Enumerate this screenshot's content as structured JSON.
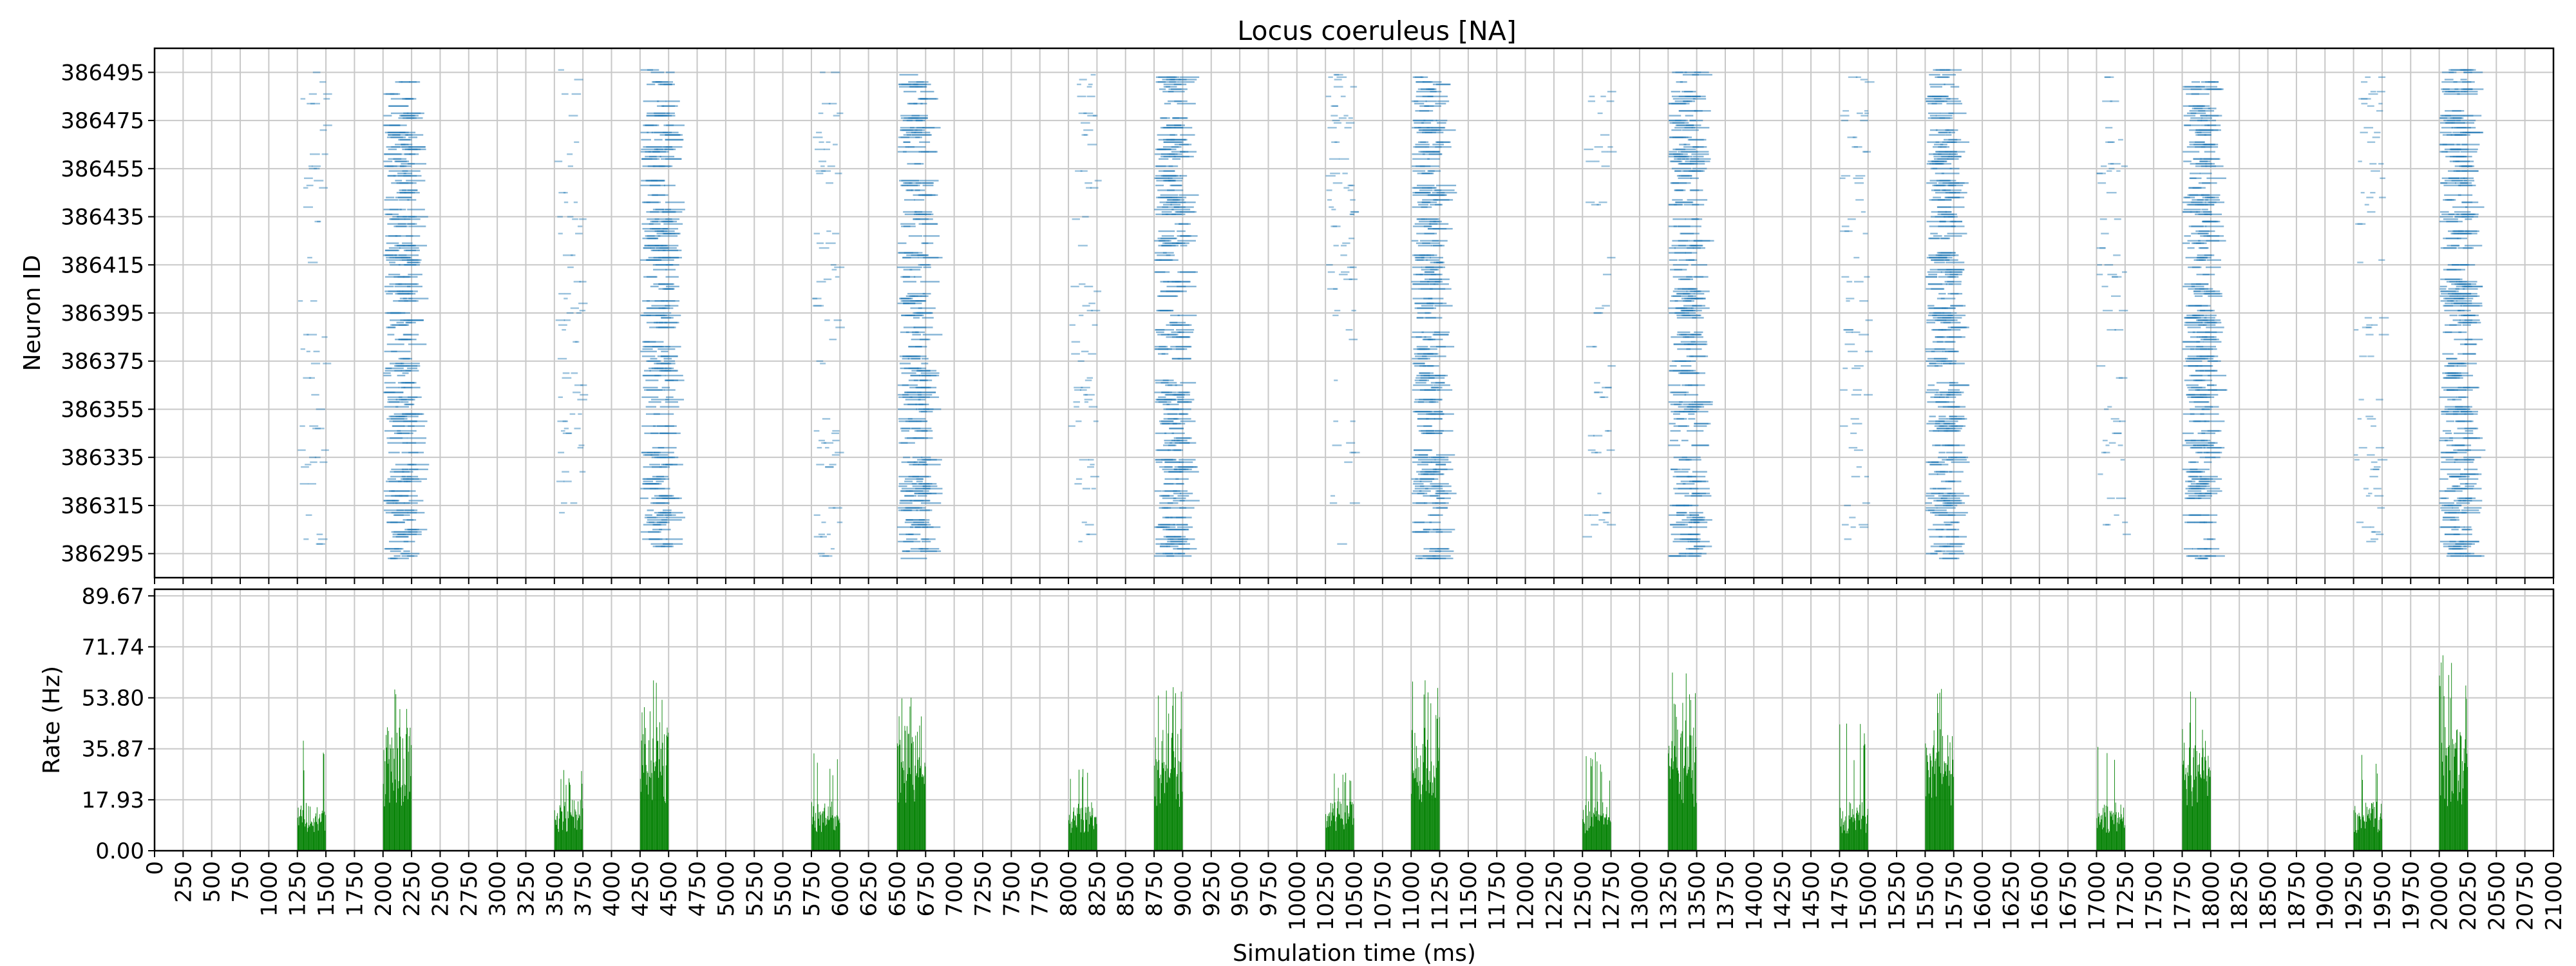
{
  "chart_data": [
    {
      "type": "scatter",
      "title": "Locus coeruleus [NA]",
      "xlabel": "",
      "ylabel": "Neuron ID",
      "xlim": [
        0,
        21000
      ],
      "ylim": [
        386285,
        386505
      ],
      "y_ticks": [
        "386295",
        "386315",
        "386335",
        "386355",
        "386375",
        "386395",
        "386415",
        "386435",
        "386455",
        "386475",
        "386495"
      ],
      "grid": true,
      "color": "#1f77b4",
      "marker": "tiny dots (raster)",
      "neuron_id_range": [
        386293,
        386496
      ],
      "bursts": [
        {
          "start": 1250,
          "end": 1500,
          "density": "sparse"
        },
        {
          "start": 2000,
          "end": 2250,
          "density": "dense"
        },
        {
          "start": 3500,
          "end": 3750,
          "density": "sparse"
        },
        {
          "start": 4250,
          "end": 4500,
          "density": "dense"
        },
        {
          "start": 5750,
          "end": 6000,
          "density": "sparse"
        },
        {
          "start": 6500,
          "end": 6750,
          "density": "dense"
        },
        {
          "start": 8000,
          "end": 8250,
          "density": "sparse"
        },
        {
          "start": 8750,
          "end": 9000,
          "density": "dense"
        },
        {
          "start": 10250,
          "end": 10500,
          "density": "sparse"
        },
        {
          "start": 11000,
          "end": 11250,
          "density": "dense"
        },
        {
          "start": 12500,
          "end": 12750,
          "density": "sparse"
        },
        {
          "start": 13250,
          "end": 13500,
          "density": "dense"
        },
        {
          "start": 14750,
          "end": 15000,
          "density": "sparse"
        },
        {
          "start": 15500,
          "end": 15750,
          "density": "dense"
        },
        {
          "start": 17000,
          "end": 17250,
          "density": "sparse"
        },
        {
          "start": 17750,
          "end": 18000,
          "density": "dense"
        },
        {
          "start": 19250,
          "end": 19500,
          "density": "sparse"
        },
        {
          "start": 20000,
          "end": 20250,
          "density": "dense"
        }
      ]
    },
    {
      "type": "bar",
      "title": "",
      "xlabel": "Simulation time (ms)",
      "ylabel": "Rate (Hz)",
      "xlim": [
        0,
        21000
      ],
      "ylim": [
        0,
        92
      ],
      "y_ticks": [
        "0.00",
        "17.93",
        "35.87",
        "53.80",
        "71.74",
        "89.67"
      ],
      "x_ticks": [
        "0",
        "250",
        "500",
        "750",
        "1000",
        "1250",
        "1500",
        "1750",
        "2000",
        "2250",
        "2500",
        "2750",
        "3000",
        "3250",
        "3500",
        "3750",
        "4000",
        "4250",
        "4500",
        "4750",
        "5000",
        "5250",
        "5500",
        "5750",
        "6000",
        "6250",
        "6500",
        "6750",
        "7000",
        "7250",
        "7500",
        "7750",
        "8000",
        "8250",
        "8500",
        "8750",
        "9000",
        "9250",
        "9500",
        "9750",
        "10000",
        "10250",
        "10500",
        "10750",
        "11000",
        "11250",
        "11500",
        "11750",
        "12000",
        "12250",
        "12500",
        "12750",
        "13000",
        "13250",
        "13500",
        "13750",
        "14000",
        "14250",
        "14500",
        "14750",
        "15000",
        "15250",
        "15500",
        "15750",
        "16000",
        "16250",
        "16500",
        "16750",
        "17000",
        "17250",
        "17500",
        "17750",
        "18000",
        "18250",
        "18500",
        "18750",
        "19000",
        "19250",
        "19500",
        "19750",
        "20000",
        "20250",
        "20500",
        "20750",
        "21000"
      ],
      "grid": true,
      "color": "#008000",
      "bursts": [
        {
          "start": 1250,
          "end": 1500,
          "base": 13,
          "peak": 40
        },
        {
          "start": 2000,
          "end": 2250,
          "base": 30,
          "peak": 58
        },
        {
          "start": 3500,
          "end": 3750,
          "base": 13,
          "peak": 30
        },
        {
          "start": 4250,
          "end": 4500,
          "base": 30,
          "peak": 63
        },
        {
          "start": 5750,
          "end": 6000,
          "base": 12,
          "peak": 35
        },
        {
          "start": 6500,
          "end": 6750,
          "base": 30,
          "peak": 54
        },
        {
          "start": 8000,
          "end": 8250,
          "base": 12,
          "peak": 35
        },
        {
          "start": 8750,
          "end": 9000,
          "base": 30,
          "peak": 58
        },
        {
          "start": 10250,
          "end": 10500,
          "base": 12,
          "peak": 30
        },
        {
          "start": 11000,
          "end": 11250,
          "base": 30,
          "peak": 63
        },
        {
          "start": 12500,
          "end": 12750,
          "base": 12,
          "peak": 35
        },
        {
          "start": 13250,
          "end": 13500,
          "base": 30,
          "peak": 63
        },
        {
          "start": 14750,
          "end": 15000,
          "base": 12,
          "peak": 45
        },
        {
          "start": 15500,
          "end": 15750,
          "base": 30,
          "peak": 58
        },
        {
          "start": 17000,
          "end": 17250,
          "base": 12,
          "peak": 40
        },
        {
          "start": 17750,
          "end": 18000,
          "base": 30,
          "peak": 63
        },
        {
          "start": 19250,
          "end": 19500,
          "base": 12,
          "peak": 35
        },
        {
          "start": 20000,
          "end": 20250,
          "base": 30,
          "peak": 72
        }
      ]
    }
  ]
}
